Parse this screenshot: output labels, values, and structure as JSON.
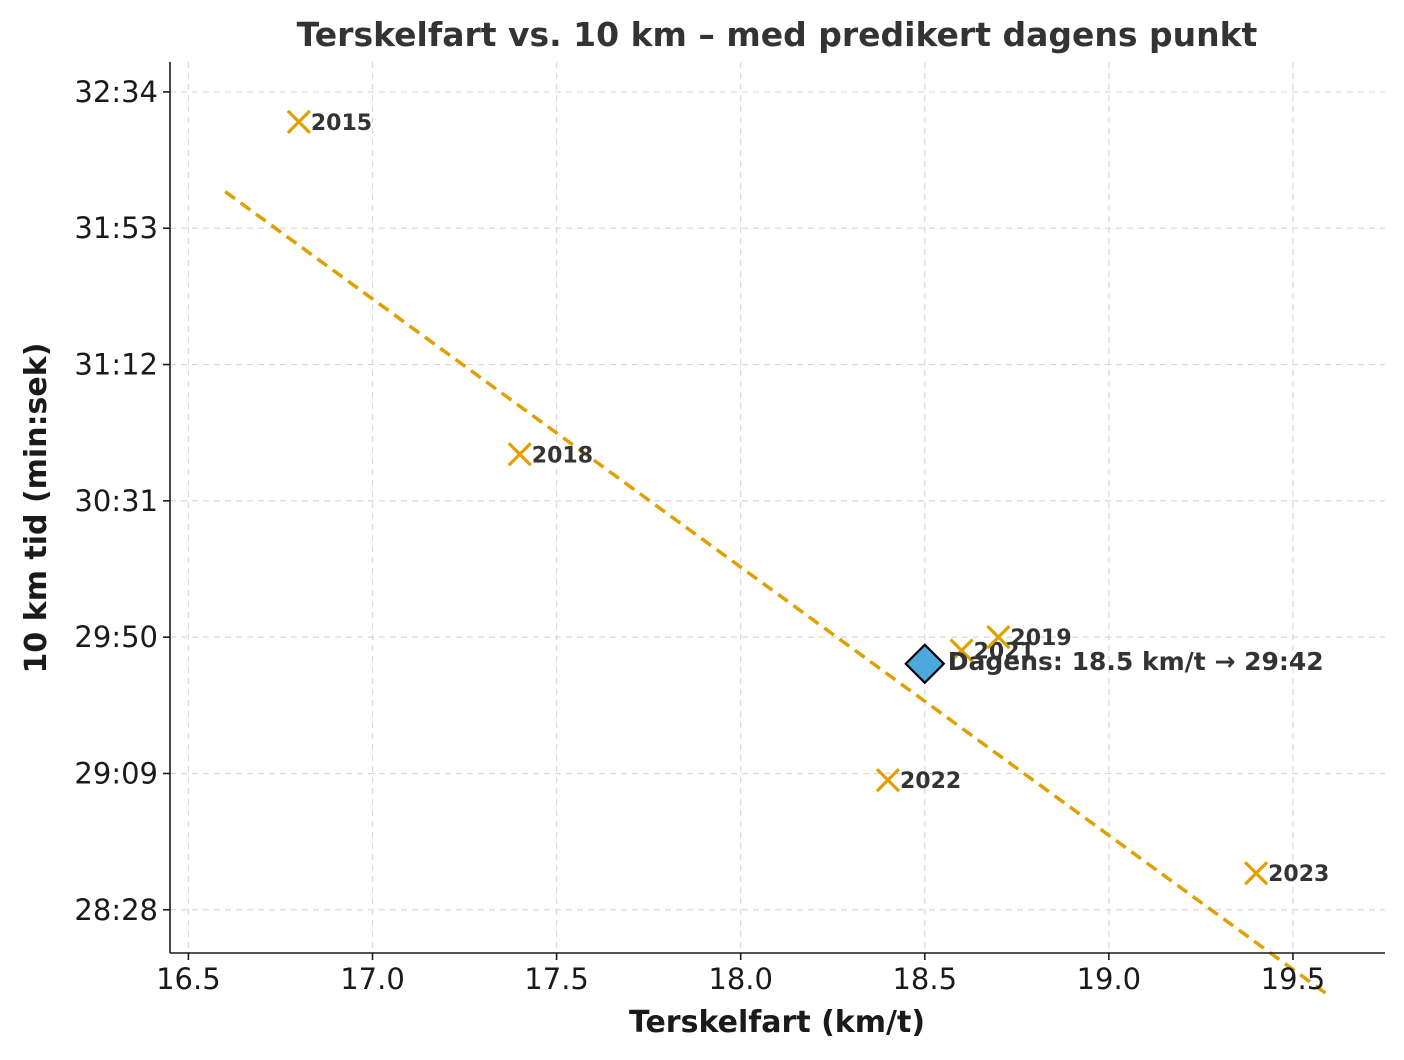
{
  "chart_data": {
    "type": "scatter",
    "title": "Terskelfart vs. 10 km – med predikert dagens punkt",
    "xlabel": "Terskelfart (km/t)",
    "ylabel": "10 km tid (min:sek)",
    "xlim": [
      16.45,
      19.75
    ],
    "ylim_seconds": [
      1695,
      1963
    ],
    "x_ticks": [
      16.5,
      17.0,
      17.5,
      18.0,
      18.5,
      19.0,
      19.5
    ],
    "x_tick_labels": [
      "16.5",
      "17.0",
      "17.5",
      "18.0",
      "18.5",
      "19.0",
      "19.5"
    ],
    "y_ticks_seconds": [
      1708,
      1749,
      1790,
      1831,
      1872,
      1913,
      1954
    ],
    "y_tick_labels": [
      "28:28",
      "29:09",
      "29:50",
      "30:31",
      "31:12",
      "31:53",
      "32:34"
    ],
    "grid": true,
    "marker_color": "#E0A000",
    "highlight_color": "#4EA8E0",
    "points": [
      {
        "label": "2015",
        "x": 16.8,
        "y_seconds": 1945
      },
      {
        "label": "2018",
        "x": 17.4,
        "y_seconds": 1845
      },
      {
        "label": "2021",
        "x": 18.6,
        "y_seconds": 1786
      },
      {
        "label": "2019",
        "x": 18.7,
        "y_seconds": 1790
      },
      {
        "label": "2022",
        "x": 18.4,
        "y_seconds": 1747
      },
      {
        "label": "2023",
        "x": 19.4,
        "y_seconds": 1719
      }
    ],
    "fit_line": {
      "x": [
        16.6,
        19.6
      ],
      "y_seconds": [
        1924,
        1682
      ]
    },
    "highlight": {
      "x": 18.5,
      "y_seconds": 1782,
      "label": "Dagens: 18.5 km/t → 29:42"
    }
  }
}
